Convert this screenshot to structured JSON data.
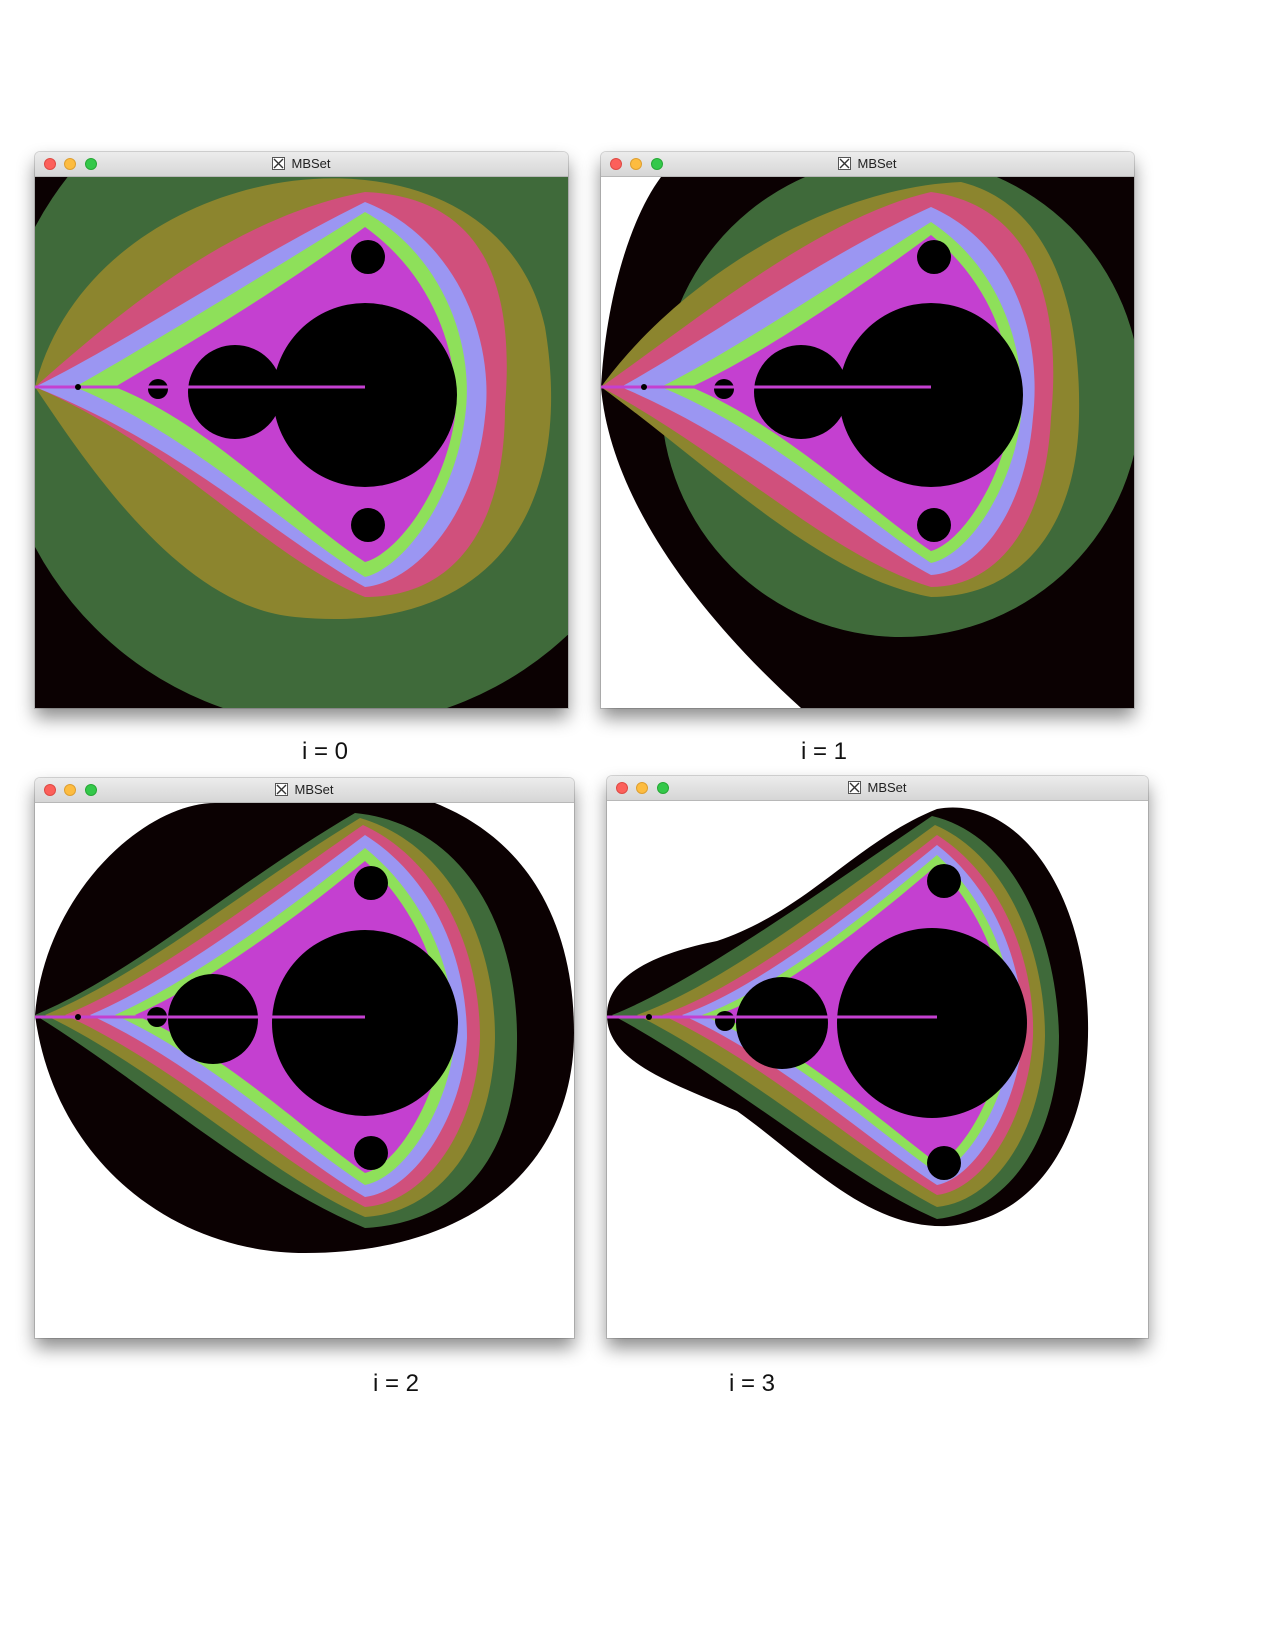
{
  "windows": [
    {
      "id": "w0",
      "title": "MBSet",
      "caption": "i = 0"
    },
    {
      "id": "w1",
      "title": "MBSet",
      "caption": "i = 1"
    },
    {
      "id": "w2",
      "title": "MBSet",
      "caption": "i = 2"
    },
    {
      "id": "w3",
      "title": "MBSet",
      "caption": "i = 3"
    }
  ],
  "palette": {
    "black": "#000000",
    "outer_dark": "#0b0102",
    "green": "#3f6a3a",
    "olive": "#8c852e",
    "pink": "#d0507c",
    "lavender": "#9b96f2",
    "lime": "#8ee05a",
    "red": "#d2444e",
    "magenta": "#c440d0",
    "white": "#ffffff"
  },
  "icons": {
    "window_icon": "x11-icon",
    "traffic_lights": [
      "close-button",
      "minimize-button",
      "zoom-button"
    ]
  }
}
